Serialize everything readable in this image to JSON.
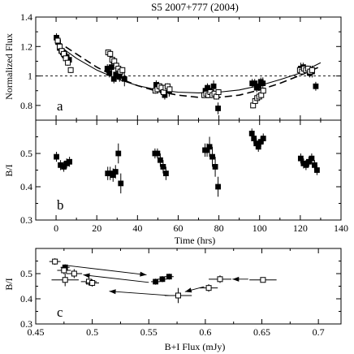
{
  "figure": {
    "title": "S5 2007+777 (2004)"
  },
  "chart_data": [
    {
      "panel_label": "a",
      "type": "scatter",
      "xlim": [
        -10,
        140
      ],
      "ylim": [
        0.7,
        1.4
      ],
      "ylabel": "Normalized Flux",
      "xlabel": "",
      "yticks": [
        0.8,
        1,
        1.2,
        1.4
      ],
      "reference_line": 1.0,
      "series": [
        {
          "marker": "filled-square",
          "points": [
            [
              0.2,
              1.26,
              0.03
            ],
            [
              1.0,
              1.23,
              0.03
            ],
            [
              1.8,
              1.19,
              0.03
            ],
            [
              2.6,
              1.17,
              0.03
            ],
            [
              3.3,
              1.16,
              0.03
            ],
            [
              4.2,
              1.14,
              0.03
            ],
            [
              5.2,
              1.13,
              0.03
            ],
            [
              6.4,
              1.11,
              0.03
            ],
            [
              25.2,
              1.05,
              0.03
            ],
            [
              26.2,
              1.02,
              0.03
            ],
            [
              27.2,
              1.06,
              0.04
            ],
            [
              28.4,
              0.98,
              0.03
            ],
            [
              29.4,
              1.01,
              0.05
            ],
            [
              31.2,
              1.0,
              0.04
            ],
            [
              33.6,
              0.98,
              0.05
            ],
            [
              49.2,
              0.94,
              0.03
            ],
            [
              50.4,
              0.93,
              0.03
            ],
            [
              51.4,
              0.92,
              0.03
            ],
            [
              52.4,
              0.9,
              0.04
            ],
            [
              53.4,
              0.87,
              0.03
            ],
            [
              55.6,
              0.9,
              0.04
            ],
            [
              73.4,
              0.9,
              0.03
            ],
            [
              74.4,
              0.92,
              0.03
            ],
            [
              75.4,
              0.9,
              0.03
            ],
            [
              76.4,
              0.88,
              0.03
            ],
            [
              77.4,
              0.93,
              0.04
            ],
            [
              79.6,
              0.78,
              0.04
            ],
            [
              96.4,
              0.95,
              0.03
            ],
            [
              97.6,
              0.95,
              0.03
            ],
            [
              98.6,
              0.92,
              0.03
            ],
            [
              99.6,
              0.93,
              0.03
            ],
            [
              100.6,
              0.96,
              0.03
            ],
            [
              101.6,
              0.95,
              0.04
            ],
            [
              120.2,
              1.05,
              0.04
            ],
            [
              121.4,
              1.06,
              0.03
            ],
            [
              122.4,
              1.05,
              0.03
            ],
            [
              123.4,
              1.04,
              0.03
            ],
            [
              124.6,
              1.02,
              0.03
            ],
            [
              125.8,
              1.03,
              0.04
            ],
            [
              127.6,
              0.93,
              0.03
            ]
          ]
        },
        {
          "marker": "open-square",
          "points": [
            [
              0.8,
              1.24,
              0.02
            ],
            [
              1.8,
              1.2,
              0.02
            ],
            [
              2.8,
              1.17,
              0.02
            ],
            [
              3.8,
              1.15,
              0.02
            ],
            [
              4.8,
              1.12,
              0.02
            ],
            [
              5.8,
              1.09,
              0.02
            ],
            [
              7.2,
              1.04,
              0.02
            ],
            [
              25.6,
              1.16,
              0.02
            ],
            [
              26.6,
              1.15,
              0.02
            ],
            [
              27.6,
              1.11,
              0.02
            ],
            [
              28.6,
              1.1,
              0.02
            ],
            [
              29.6,
              1.07,
              0.02
            ],
            [
              30.6,
              1.05,
              0.02
            ],
            [
              31.6,
              1.03,
              0.02
            ],
            [
              32.6,
              1.04,
              0.02
            ],
            [
              48.8,
              0.9,
              0.02
            ],
            [
              49.8,
              0.91,
              0.02
            ],
            [
              50.8,
              0.93,
              0.02
            ],
            [
              51.8,
              0.92,
              0.02
            ],
            [
              52.8,
              0.89,
              0.02
            ],
            [
              53.8,
              0.92,
              0.02
            ],
            [
              54.8,
              0.93,
              0.02
            ],
            [
              55.8,
              0.91,
              0.02
            ],
            [
              72.8,
              0.87,
              0.02
            ],
            [
              73.8,
              0.88,
              0.02
            ],
            [
              74.8,
              0.87,
              0.02
            ],
            [
              75.8,
              0.89,
              0.02
            ],
            [
              76.8,
              0.87,
              0.02
            ],
            [
              77.8,
              0.88,
              0.02
            ],
            [
              78.8,
              0.86,
              0.02
            ],
            [
              79.8,
              0.89,
              0.02
            ],
            [
              96.8,
              0.8,
              0.02
            ],
            [
              97.8,
              0.83,
              0.02
            ],
            [
              98.8,
              0.85,
              0.02
            ],
            [
              99.8,
              0.86,
              0.02
            ],
            [
              100.8,
              0.87,
              0.02
            ],
            [
              101.8,
              0.9,
              0.02
            ],
            [
              119.8,
              1.04,
              0.02
            ],
            [
              120.8,
              1.03,
              0.02
            ],
            [
              121.8,
              1.05,
              0.02
            ],
            [
              122.8,
              1.04,
              0.02
            ],
            [
              123.8,
              1.05,
              0.02
            ],
            [
              124.8,
              1.03,
              0.02
            ],
            [
              125.8,
              1.04,
              0.02
            ]
          ]
        }
      ],
      "fits": [
        {
          "style": "solid",
          "points": [
            [
              0,
              1.22
            ],
            [
              10,
              1.12
            ],
            [
              20,
              1.04
            ],
            [
              30,
              0.98
            ],
            [
              40,
              0.935
            ],
            [
              50,
              0.905
            ],
            [
              60,
              0.89
            ],
            [
              70,
              0.885
            ],
            [
              80,
              0.89
            ],
            [
              90,
              0.905
            ],
            [
              100,
              0.935
            ],
            [
              110,
              0.975
            ],
            [
              120,
              1.02
            ],
            [
              130,
              1.09
            ]
          ]
        },
        {
          "style": "dashed",
          "points": [
            [
              0,
              1.24
            ],
            [
              10,
              1.15
            ],
            [
              20,
              1.06
            ],
            [
              30,
              0.99
            ],
            [
              40,
              0.935
            ],
            [
              50,
              0.895
            ],
            [
              60,
              0.87
            ],
            [
              70,
              0.855
            ],
            [
              80,
              0.855
            ],
            [
              90,
              0.87
            ],
            [
              100,
              0.905
            ],
            [
              110,
              0.95
            ],
            [
              120,
              1.005
            ],
            [
              130,
              1.065
            ]
          ]
        }
      ]
    },
    {
      "panel_label": "b",
      "type": "scatter",
      "xlim": [
        -10,
        140
      ],
      "ylim": [
        0.3,
        0.6
      ],
      "ylabel": "B/I",
      "xlabel": "Time (hrs)",
      "xticks": [
        0,
        20,
        40,
        60,
        80,
        100,
        120,
        140
      ],
      "yticks": [
        0.3,
        0.4,
        0.5
      ],
      "series": [
        {
          "marker": "filled-square",
          "points": [
            [
              0.2,
              0.49,
              0.015
            ],
            [
              2.2,
              0.465,
              0.015
            ],
            [
              3.8,
              0.46,
              0.015
            ],
            [
              5.2,
              0.47,
              0.015
            ],
            [
              6.6,
              0.475,
              0.015
            ],
            [
              25.4,
              0.44,
              0.02
            ],
            [
              26.6,
              0.44,
              0.02
            ],
            [
              28.0,
              0.435,
              0.02
            ],
            [
              29.2,
              0.445,
              0.02
            ],
            [
              30.6,
              0.5,
              0.03
            ],
            [
              31.8,
              0.41,
              0.03
            ],
            [
              48.6,
              0.5,
              0.015
            ],
            [
              49.8,
              0.5,
              0.015
            ],
            [
              51.2,
              0.48,
              0.02
            ],
            [
              52.6,
              0.46,
              0.02
            ],
            [
              54.0,
              0.44,
              0.02
            ],
            [
              73.2,
              0.51,
              0.02
            ],
            [
              74.2,
              0.51,
              0.02
            ],
            [
              75.4,
              0.52,
              0.03
            ],
            [
              76.8,
              0.49,
              0.03
            ],
            [
              78.2,
              0.46,
              0.03
            ],
            [
              79.6,
              0.4,
              0.03
            ],
            [
              96.2,
              0.56,
              0.015
            ],
            [
              97.2,
              0.545,
              0.015
            ],
            [
              98.4,
              0.53,
              0.015
            ],
            [
              99.4,
              0.52,
              0.015
            ],
            [
              100.6,
              0.535,
              0.015
            ],
            [
              101.8,
              0.545,
              0.015
            ],
            [
              120.2,
              0.485,
              0.015
            ],
            [
              121.6,
              0.47,
              0.015
            ],
            [
              122.8,
              0.465,
              0.015
            ],
            [
              124.2,
              0.475,
              0.015
            ],
            [
              125.6,
              0.485,
              0.015
            ],
            [
              127.0,
              0.465,
              0.015
            ],
            [
              128.2,
              0.45,
              0.015
            ]
          ]
        }
      ]
    },
    {
      "panel_label": "c",
      "type": "scatter",
      "xlim": [
        0.45,
        0.72
      ],
      "ylim": [
        0.3,
        0.6
      ],
      "ylabel": "B/I",
      "xlabel": "B+I Flux (mJy)",
      "xticks": [
        0.45,
        0.5,
        0.55,
        0.6,
        0.65,
        0.7
      ],
      "yticks": [
        0.3,
        0.4,
        0.5
      ],
      "series": [
        {
          "marker": "filled-square",
          "points": [
            [
              0.476,
              0.525,
              0.004,
              0.012
            ],
            [
              0.556,
              0.468,
              0.004,
              0.012
            ],
            [
              0.562,
              0.478,
              0.004,
              0.012
            ],
            [
              0.568,
              0.488,
              0.004,
              0.012
            ]
          ]
        },
        {
          "marker": "open-square",
          "points": [
            [
              0.467,
              0.548,
              0.005,
              0.013
            ],
            [
              0.475,
              0.513,
              0.006,
              0.015
            ],
            [
              0.484,
              0.5,
              0.007,
              0.018
            ],
            [
              0.476,
              0.475,
              0.012,
              0.025
            ],
            [
              0.497,
              0.468,
              0.007,
              0.015
            ],
            [
              0.5,
              0.463,
              0.006,
              0.015
            ],
            [
              0.576,
              0.413,
              0.012,
              0.03
            ],
            [
              0.603,
              0.443,
              0.008,
              0.015
            ],
            [
              0.613,
              0.478,
              0.01,
              0.015
            ],
            [
              0.651,
              0.475,
              0.012,
              0.01
            ]
          ]
        }
      ],
      "arrows": [
        {
          "from": [
            0.478,
            0.532
          ],
          "to": [
            0.548,
            0.495
          ]
        },
        {
          "from": [
            0.55,
            0.465
          ],
          "to": [
            0.492,
            0.495
          ]
        },
        {
          "from": [
            0.568,
            0.413
          ],
          "to": [
            0.515,
            0.43
          ]
        },
        {
          "from": [
            0.599,
            0.448
          ],
          "to": [
            0.582,
            0.428
          ]
        },
        {
          "from": [
            0.638,
            0.478
          ],
          "to": [
            0.624,
            0.478
          ]
        }
      ]
    }
  ]
}
